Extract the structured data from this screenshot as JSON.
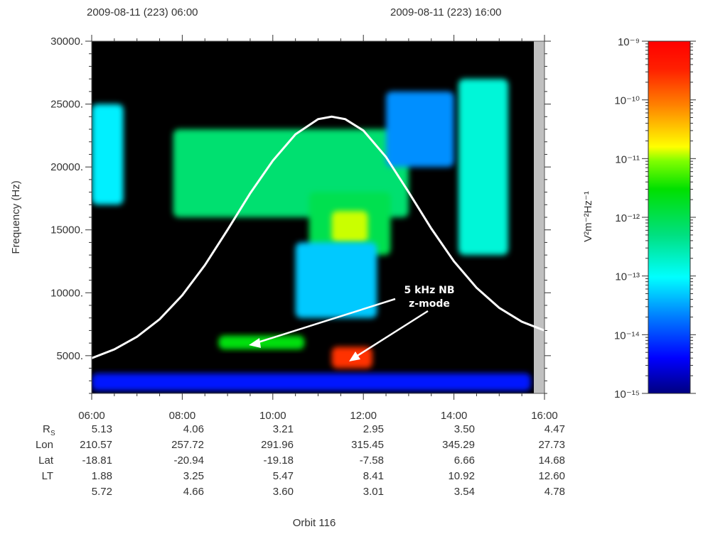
{
  "header": {
    "start_time": "2009-08-11 (223) 06:00",
    "end_time": "2009-08-11 (223) 16:00"
  },
  "footer": {
    "orbit": "Orbit 116"
  },
  "annotation": {
    "line1": "5 kHz NB",
    "line2": "z-mode"
  },
  "colors": {
    "curve": "#ffffff",
    "nodata": "#c0c0c0",
    "background": "#000000"
  },
  "colorbar": {
    "label": "V²m⁻²Hz⁻¹",
    "ticks": [
      "10⁻⁹",
      "10⁻¹⁰",
      "10⁻¹¹",
      "10⁻¹²",
      "10⁻¹³",
      "10⁻¹⁴",
      "10⁻¹⁵"
    ],
    "log_range": [
      -15,
      -9
    ]
  },
  "ephemeris": {
    "row_labels": [
      "R",
      "Lon",
      "Lat",
      "LT",
      ""
    ],
    "rs_subscript": "S",
    "rows": [
      [
        "5.13",
        "4.06",
        "3.21",
        "2.95",
        "3.50",
        "4.47"
      ],
      [
        "210.57",
        "257.72",
        "291.96",
        "315.45",
        "345.29",
        "27.73"
      ],
      [
        "-18.81",
        "-20.94",
        "-19.18",
        "-7.58",
        "6.66",
        "14.68"
      ],
      [
        "1.88",
        "3.25",
        "5.47",
        "8.41",
        "10.92",
        "12.60"
      ],
      [
        "5.72",
        "4.66",
        "3.60",
        "3.01",
        "3.54",
        "4.78"
      ]
    ]
  },
  "chart_data": {
    "type": "heatmap",
    "title": "",
    "xlabel": "",
    "ylabel": "Frequency (Hz)",
    "x_tick_labels": [
      "06:00",
      "08:00",
      "10:00",
      "12:00",
      "14:00",
      "16:00"
    ],
    "x_range_hours": [
      6,
      16
    ],
    "y_tick_labels": [
      "5000.",
      "10000.",
      "15000.",
      "20000.",
      "25000.",
      "30000."
    ],
    "y_ticks": [
      5000,
      10000,
      15000,
      20000,
      25000,
      30000
    ],
    "ylim": [
      2000,
      30000
    ],
    "colorscale_units": "V²m⁻²Hz⁻¹",
    "colorscale_log_range": [
      -15,
      -9
    ],
    "overlay_curve": {
      "x_hours": [
        6.0,
        6.5,
        7.0,
        7.5,
        8.0,
        8.5,
        9.0,
        9.5,
        10.0,
        10.5,
        11.0,
        11.3,
        11.6,
        12.0,
        12.5,
        13.0,
        13.5,
        14.0,
        14.5,
        15.0,
        15.5,
        16.0
      ],
      "y_hz": [
        4800,
        5500,
        6500,
        7900,
        9800,
        12200,
        15000,
        17900,
        20500,
        22600,
        23800,
        24000,
        23800,
        22900,
        20800,
        18000,
        15100,
        12500,
        10400,
        8800,
        7700,
        7000
      ]
    },
    "emissions": [
      {
        "t": [
          6.0,
          15.7
        ],
        "f": [
          2200,
          3600
        ],
        "log_intensity": -14.3
      },
      {
        "t": [
          7.8,
          13.0
        ],
        "f": [
          16000,
          23000
        ],
        "log_intensity": -12.2
      },
      {
        "t": [
          10.8,
          12.6
        ],
        "f": [
          13000,
          18000
        ],
        "log_intensity": -12.0
      },
      {
        "t": [
          11.3,
          12.1
        ],
        "f": [
          14000,
          16500
        ],
        "log_intensity": -10.9
      },
      {
        "t": [
          10.5,
          12.3
        ],
        "f": [
          8000,
          14000
        ],
        "log_intensity": -13.3
      },
      {
        "t": [
          8.8,
          10.7
        ],
        "f": [
          5500,
          6600
        ],
        "log_intensity": -11.6
      },
      {
        "t": [
          11.3,
          12.2
        ],
        "f": [
          4000,
          5700
        ],
        "log_intensity": -9.6
      },
      {
        "t": [
          14.1,
          15.2
        ],
        "f": [
          13000,
          27000
        ],
        "log_intensity": -12.8
      },
      {
        "t": [
          6.0,
          6.7
        ],
        "f": [
          17000,
          25000
        ],
        "log_intensity": -13.1
      },
      {
        "t": [
          12.5,
          14.0
        ],
        "f": [
          20000,
          26000
        ],
        "log_intensity": -13.6
      }
    ]
  }
}
